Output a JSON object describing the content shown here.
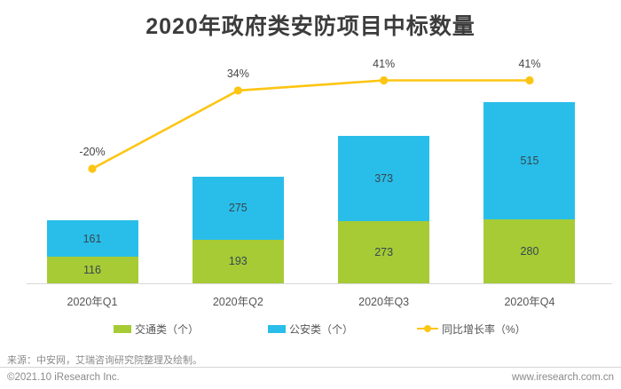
{
  "title": "2020年政府类安防项目中标数量",
  "chart_data": {
    "type": "bar",
    "subtype": "stacked-bars-with-line-overlay",
    "title": "2020年政府类安防项目中标数量",
    "categories": [
      "2020年Q1",
      "2020年Q2",
      "2020年Q3",
      "2020年Q4"
    ],
    "series": [
      {
        "name": "交通类（个）",
        "type": "bar",
        "color": "#a6cb35",
        "values": [
          116,
          193,
          273,
          280
        ]
      },
      {
        "name": "公安类（个）",
        "type": "bar",
        "color": "#29bee9",
        "values": [
          161,
          275,
          373,
          515
        ]
      },
      {
        "name": "同比增长率（%）",
        "type": "line",
        "color": "#fdc513",
        "values": [
          -20,
          34,
          41,
          41
        ],
        "point_labels": [
          "-20%",
          "34%",
          "41%",
          "41%"
        ]
      }
    ],
    "value_labels": true,
    "grid": false,
    "y_axis_visible": false,
    "legend_position": "bottom"
  },
  "legend": {
    "traffic_label": "交通类（个）",
    "police_label": "公安类（个）",
    "growth_label": "同比增长率（%）"
  },
  "footer": {
    "source": "来源：中安网，艾瑞咨询研究院整理及绘制。",
    "copyright": "©2021.10 iResearch Inc.",
    "website": "www.iresearch.com.cn"
  },
  "colors": {
    "traffic_green": "#a6cb35",
    "police_blue": "#29bee9",
    "growth_yellow": "#fdc513",
    "title_text": "#3c3c3c",
    "axis_line": "#d8d8d8"
  }
}
